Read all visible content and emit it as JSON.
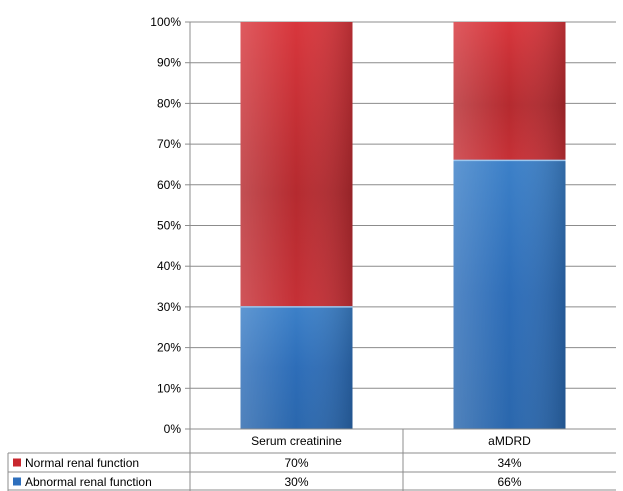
{
  "chart_data": {
    "type": "bar",
    "stacked": true,
    "percent": true,
    "categories": [
      "Serum creatinine",
      "aMDRD"
    ],
    "series": [
      {
        "name": "Normal renal function",
        "values": [
          70,
          34
        ],
        "labels": [
          "70%",
          "34%"
        ],
        "color": "#c8272e"
      },
      {
        "name": "Abnormal renal function",
        "values": [
          30,
          66
        ],
        "labels": [
          "30%",
          "66%"
        ],
        "color": "#2e6fbd"
      }
    ],
    "y_ticks": [
      "0%",
      "10%",
      "20%",
      "30%",
      "40%",
      "50%",
      "60%",
      "70%",
      "80%",
      "90%",
      "100%"
    ],
    "ylim": [
      0,
      100
    ],
    "grid": true,
    "legend_placement": "data table rows below chart"
  }
}
